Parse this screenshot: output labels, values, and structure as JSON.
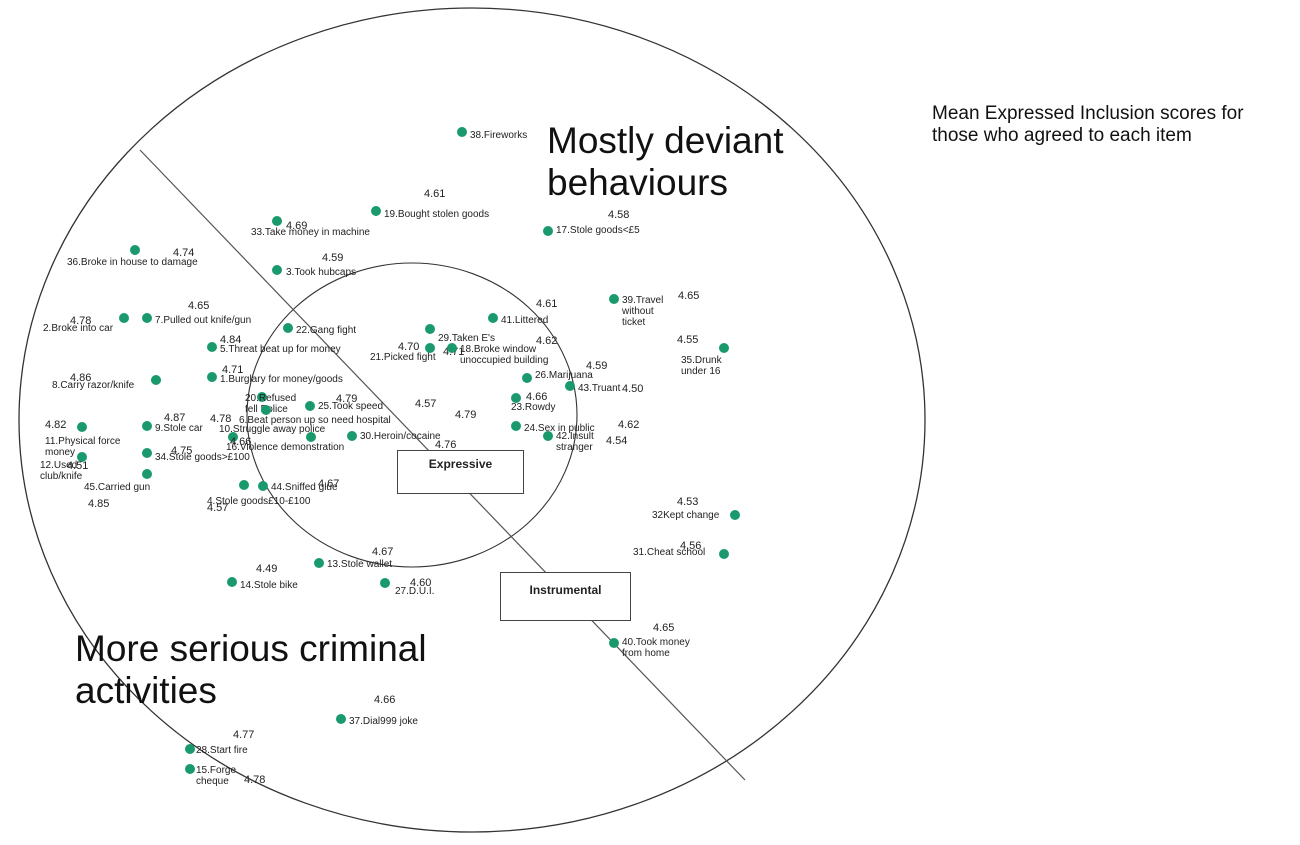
{
  "legend_note": "Mean Expressed Inclusion scores for those who agreed to each item",
  "region_labels": {
    "deviant_line1": "Mostly deviant",
    "deviant_line2": "behaviours",
    "criminal_line1": "More serious criminal",
    "criminal_line2": "activities"
  },
  "inner_boxes": {
    "expressive": "Expressive",
    "instrumental": "Instrumental"
  },
  "point_color": "#1a9a6c",
  "items": [
    {
      "label": "38.Fireworks",
      "score": ""
    },
    {
      "label": "19.Bought stolen goods",
      "score": "4.61"
    },
    {
      "label": "33.Take money in machine",
      "score": "4.69"
    },
    {
      "label": "17.Stole goods<£5",
      "score": "4.58"
    },
    {
      "label": "36.Broke in house to damage",
      "score": "4.74"
    },
    {
      "label": "3.Took hubcaps",
      "score": "4.59"
    },
    {
      "label": "39.Travel without ticket",
      "score": "4.65"
    },
    {
      "label": "2.Broke into car",
      "score": "4.78"
    },
    {
      "label": "7.Pulled out knife/gun",
      "score": "4.65"
    },
    {
      "label": "22.Gang fight",
      "score": ""
    },
    {
      "label": "29.Taken E's",
      "score": "4.71"
    },
    {
      "label": "41.Littered",
      "score": "4.61"
    },
    {
      "label": "5.Threat beat up for money",
      "score": "4.84"
    },
    {
      "label": "21.Picked fight",
      "score": "4.70"
    },
    {
      "label": "18.Broke window unoccupied building",
      "score": "4.62"
    },
    {
      "label": "35.Drunk under 16",
      "score": "4.55"
    },
    {
      "label": "8.Carry razor/knife",
      "score": "4.86"
    },
    {
      "label": "1.Burglary for money/goods",
      "score": "4.71"
    },
    {
      "label": "26.Marijuana",
      "score": ""
    },
    {
      "label": "43.Truant",
      "score": "4.59"
    },
    {
      "label": "",
      "score": "4.50"
    },
    {
      "label": "20.Refused fell Police",
      "score": "4.79"
    },
    {
      "label": "23.Rowdy",
      "score": "4.66"
    },
    {
      "label": "25.Took speed",
      "score": "4.57"
    },
    {
      "label": "6.Beat person up so need hospital",
      "score": "4.79"
    },
    {
      "label": "9.Stole car",
      "score": "4.87"
    },
    {
      "label": "11.Physical force money",
      "score": "4.82"
    },
    {
      "label": "10.Struggle away police",
      "score": "4.78"
    },
    {
      "label": "24.Sex in public",
      "score": "4.62"
    },
    {
      "label": "42.Insult stranger",
      "score": "4.54"
    },
    {
      "label": "16.Violence demonstration",
      "score": "4.66"
    },
    {
      "label": "30.Heroin/cocaine",
      "score": "4.76"
    },
    {
      "label": "34.Stole goods>£100",
      "score": "4.75"
    },
    {
      "label": "12.Used club/knife",
      "score": "4.51"
    },
    {
      "label": "45.Carried gun",
      "score": "4.85"
    },
    {
      "label": "44.Sniffed glue",
      "score": "4.67"
    },
    {
      "label": "4.Stole goods£10-£100",
      "score": "4.57"
    },
    {
      "label": "32Kept change",
      "score": "4.53"
    },
    {
      "label": "31.Cheat school",
      "score": "4.56"
    },
    {
      "label": "13.Stole wallet",
      "score": "4.67"
    },
    {
      "label": "14.Stole bike",
      "score": "4.49"
    },
    {
      "label": "27.D.U.I.",
      "score": "4.60"
    },
    {
      "label": "40.Took money from home",
      "score": "4.65"
    },
    {
      "label": "37.Dial999 joke",
      "score": "4.66"
    },
    {
      "label": "28.Start fire",
      "score": "4.77"
    },
    {
      "label": "15.Forge cheque",
      "score": "4.78"
    }
  ]
}
